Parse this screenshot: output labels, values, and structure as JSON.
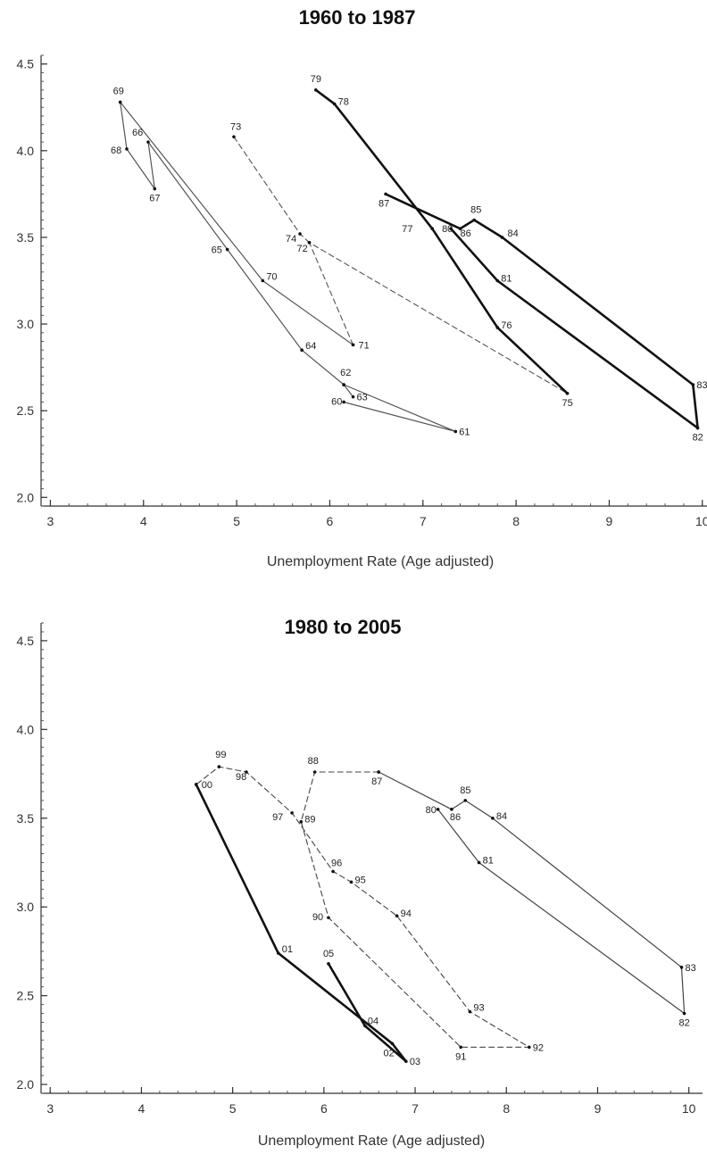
{
  "chart_data": [
    {
      "type": "line",
      "title": "1960 to 1987",
      "xlabel": "Unemployment Rate (Age adjusted)",
      "ylabel": "",
      "xlim": [
        2.9,
        10.05
      ],
      "ylim": [
        1.95,
        4.55
      ],
      "xticks": [
        "3",
        "4",
        "5",
        "6",
        "7",
        "8",
        "9",
        "10"
      ],
      "yticks": [
        "2.0",
        "2.5",
        "3.0",
        "3.5",
        "4.0",
        "4.5"
      ],
      "series": [
        {
          "style": "thin",
          "color": "#555555",
          "points": [
            {
              "label": "60",
              "x": 6.15,
              "y": 2.55
            },
            {
              "label": "61",
              "x": 7.35,
              "y": 2.38
            },
            {
              "label": "62",
              "x": 6.15,
              "y": 2.65
            },
            {
              "label": "63",
              "x": 6.25,
              "y": 2.58
            },
            {
              "label": "62",
              "x": 6.15,
              "y": 2.65
            },
            {
              "label": "64",
              "x": 5.7,
              "y": 2.85
            },
            {
              "label": "65",
              "x": 4.9,
              "y": 3.43
            },
            {
              "label": "66",
              "x": 4.05,
              "y": 4.05
            },
            {
              "label": "67",
              "x": 4.12,
              "y": 3.78
            },
            {
              "label": "68",
              "x": 3.82,
              "y": 4.01
            },
            {
              "label": "69",
              "x": 3.75,
              "y": 4.28
            },
            {
              "label": "70",
              "x": 5.28,
              "y": 3.25
            },
            {
              "label": "71",
              "x": 6.25,
              "y": 2.88
            }
          ]
        },
        {
          "style": "dashed",
          "color": "#555555",
          "points": [
            {
              "label": "71",
              "x": 6.25,
              "y": 2.88
            },
            {
              "label": "72",
              "x": 5.78,
              "y": 3.47
            },
            {
              "label": "75",
              "x": 8.55,
              "y": 2.6
            }
          ]
        },
        {
          "style": "dashed",
          "color": "#555555",
          "points": [
            {
              "label": "73",
              "x": 4.97,
              "y": 4.08
            },
            {
              "label": "74",
              "x": 5.68,
              "y": 3.52
            },
            {
              "label": "72",
              "x": 5.78,
              "y": 3.47
            }
          ]
        },
        {
          "style": "thick",
          "color": "#111111",
          "points": [
            {
              "label": "75",
              "x": 8.55,
              "y": 2.6
            },
            {
              "label": "76",
              "x": 7.8,
              "y": 2.98
            },
            {
              "label": "77",
              "x": 7.1,
              "y": 3.55
            },
            {
              "label": "78",
              "x": 6.05,
              "y": 4.27
            },
            {
              "label": "79",
              "x": 5.85,
              "y": 4.35
            }
          ]
        },
        {
          "style": "thick",
          "color": "#111111",
          "points": [
            {
              "label": "87",
              "x": 6.6,
              "y": 3.75
            },
            {
              "label": "86",
              "x": 7.4,
              "y": 3.55
            },
            {
              "label": "85",
              "x": 7.55,
              "y": 3.6
            },
            {
              "label": "84",
              "x": 7.85,
              "y": 3.5
            },
            {
              "label": "83",
              "x": 9.9,
              "y": 2.65
            },
            {
              "label": "82",
              "x": 9.95,
              "y": 2.4
            },
            {
              "label": "81",
              "x": 7.8,
              "y": 3.25
            },
            {
              "label": "80",
              "x": 7.3,
              "y": 3.55
            }
          ]
        }
      ]
    },
    {
      "type": "line",
      "title": "1980 to 2005",
      "xlabel": "Unemployment Rate (Age adjusted)",
      "ylabel": "",
      "xlim": [
        2.9,
        10.15
      ],
      "ylim": [
        1.95,
        4.6
      ],
      "xticks": [
        "3",
        "4",
        "5",
        "6",
        "7",
        "8",
        "9",
        "10"
      ],
      "yticks": [
        "2.0",
        "2.5",
        "3.0",
        "3.5",
        "4.0",
        "4.5"
      ],
      "series": [
        {
          "style": "thin",
          "color": "#444444",
          "points": [
            {
              "label": "80",
              "x": 7.25,
              "y": 3.55
            },
            {
              "label": "81",
              "x": 7.7,
              "y": 3.25
            },
            {
              "label": "82",
              "x": 9.95,
              "y": 2.4
            },
            {
              "label": "83",
              "x": 9.92,
              "y": 2.66
            },
            {
              "label": "84",
              "x": 7.85,
              "y": 3.5
            },
            {
              "label": "85",
              "x": 7.55,
              "y": 3.6
            },
            {
              "label": "86",
              "x": 7.4,
              "y": 3.55
            },
            {
              "label": "87",
              "x": 6.6,
              "y": 3.76
            }
          ]
        },
        {
          "style": "dashed",
          "color": "#444444",
          "points": [
            {
              "label": "87",
              "x": 6.6,
              "y": 3.76
            },
            {
              "label": "88",
              "x": 5.9,
              "y": 3.76
            },
            {
              "label": "89",
              "x": 5.75,
              "y": 3.48
            },
            {
              "label": "90",
              "x": 6.05,
              "y": 2.94
            },
            {
              "label": "91",
              "x": 7.5,
              "y": 2.21
            },
            {
              "label": "92",
              "x": 8.25,
              "y": 2.21
            },
            {
              "label": "93",
              "x": 7.6,
              "y": 2.41
            },
            {
              "label": "94",
              "x": 6.8,
              "y": 2.95
            },
            {
              "label": "95",
              "x": 6.3,
              "y": 3.14
            },
            {
              "label": "96",
              "x": 6.1,
              "y": 3.2
            },
            {
              "label": "97",
              "x": 5.65,
              "y": 3.53
            },
            {
              "label": "98",
              "x": 5.15,
              "y": 3.76
            },
            {
              "label": "99",
              "x": 4.85,
              "y": 3.79
            },
            {
              "label": "00",
              "x": 4.6,
              "y": 3.69
            }
          ]
        },
        {
          "style": "thick",
          "color": "#111111",
          "points": [
            {
              "label": "00",
              "x": 4.6,
              "y": 3.69
            },
            {
              "label": "01",
              "x": 5.5,
              "y": 2.74
            },
            {
              "label": "02",
              "x": 6.75,
              "y": 2.23
            },
            {
              "label": "03",
              "x": 6.9,
              "y": 2.13
            },
            {
              "label": "04",
              "x": 6.45,
              "y": 2.33
            },
            {
              "label": "05",
              "x": 6.05,
              "y": 2.68
            }
          ]
        }
      ]
    }
  ]
}
